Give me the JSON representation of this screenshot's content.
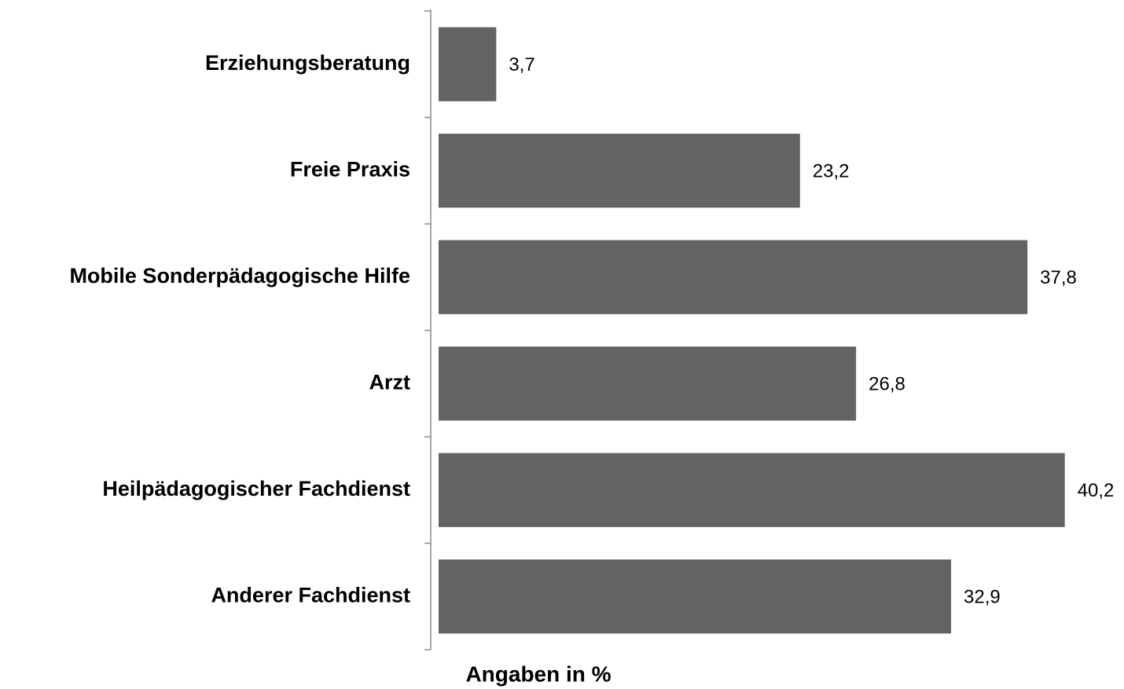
{
  "chart_data": {
    "type": "bar",
    "orientation": "horizontal",
    "x_label": "Angaben in %",
    "categories": [
      "Erziehungsberatung",
      "Freie Praxis",
      "Mobile Sonderpädagogische Hilfe",
      "Arzt",
      "Heilpädagogischer Fachdienst",
      "Anderer Fachdienst"
    ],
    "values": [
      3.7,
      23.2,
      37.8,
      26.8,
      40.2,
      32.9
    ],
    "value_labels": [
      "3,7",
      "23,2",
      "37,8",
      "26,8",
      "40,2",
      "32,9"
    ],
    "color": "#636363",
    "xlim": [
      0,
      44
    ]
  }
}
